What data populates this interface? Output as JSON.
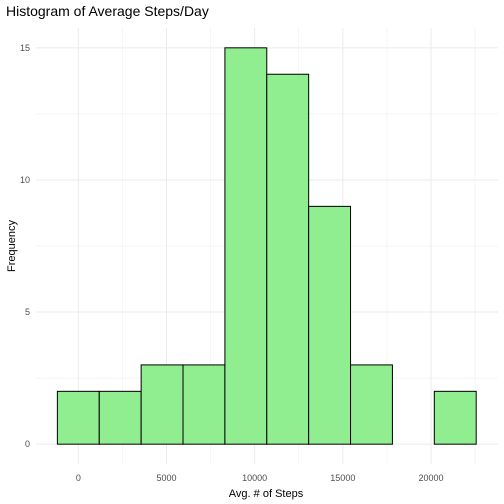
{
  "chart_data": {
    "type": "bar",
    "title": "Histogram of Average Steps/Day",
    "xlabel": "Avg. # of Steps",
    "ylabel": "Frequency",
    "bin_width": 2375,
    "bins": [
      {
        "center": 0,
        "count": 2
      },
      {
        "center": 2375,
        "count": 2
      },
      {
        "center": 4750,
        "count": 3
      },
      {
        "center": 7125,
        "count": 3
      },
      {
        "center": 9500,
        "count": 15
      },
      {
        "center": 11875,
        "count": 14
      },
      {
        "center": 14250,
        "count": 9
      },
      {
        "center": 16625,
        "count": 3
      },
      {
        "center": 19000,
        "count": 0
      },
      {
        "center": 21375,
        "count": 2
      }
    ],
    "xlim": [
      -2400,
      23800
    ],
    "ylim": [
      -0.75,
      15.75
    ],
    "xticks": [
      0,
      5000,
      10000,
      15000,
      20000
    ],
    "xtick_labels": [
      "0",
      "5000",
      "10000",
      "15000",
      "20000"
    ],
    "yticks": [
      0,
      5,
      10,
      15
    ],
    "ytick_labels": [
      "0",
      "5",
      "10",
      "15"
    ],
    "grid": true,
    "colors": {
      "fill": "#90EE90",
      "outline": "#000000",
      "grid": "#ebebeb",
      "background": "#ffffff"
    }
  }
}
